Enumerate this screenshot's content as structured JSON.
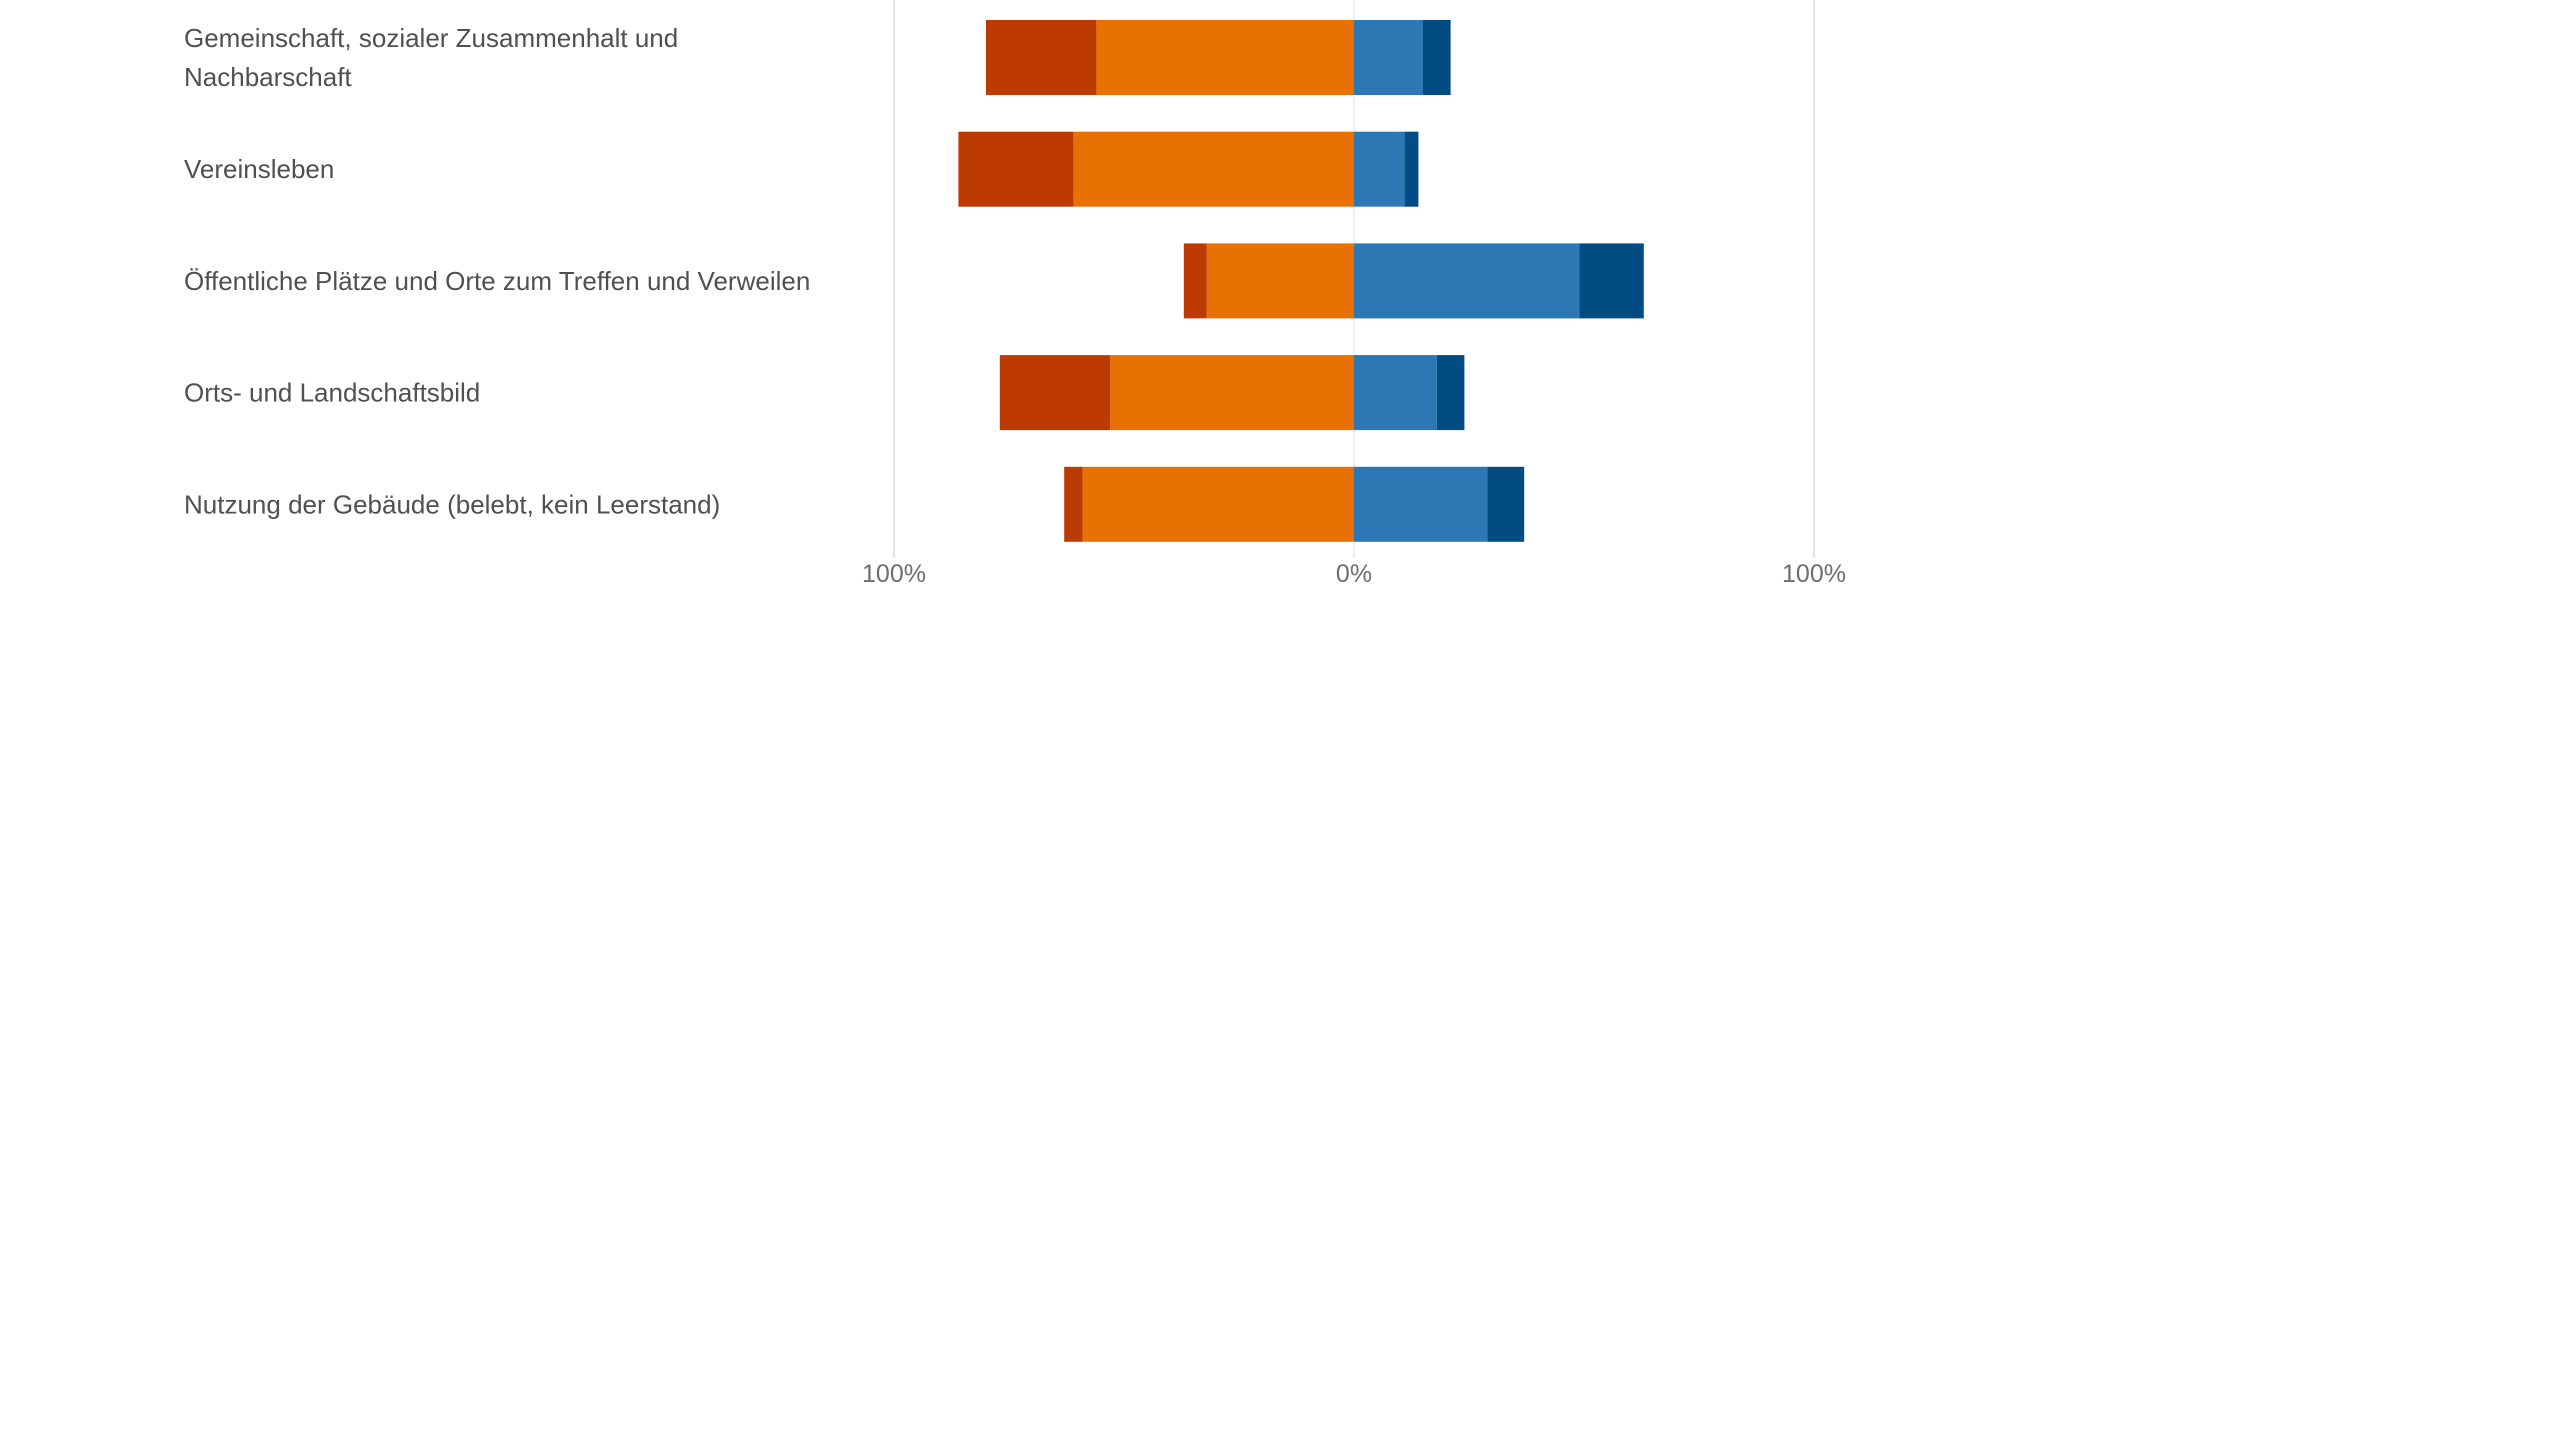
{
  "chart_data": {
    "type": "bar",
    "orientation": "horizontal",
    "stacking": "diverging",
    "categories": [
      [
        "Gemeinschaft, sozialer Zusammenhalt und",
        "Nachbarschaft"
      ],
      [
        "Vereinsleben"
      ],
      [
        "Öffentliche Plätze und Orte zum Treffen und Verweilen"
      ],
      [
        "Orts- und Landschaftsbild"
      ],
      [
        "Nutzung der Gebäude (belebt, kein Leerstand)"
      ]
    ],
    "series": [
      {
        "color": "#bd3b03",
        "side": "negative",
        "values": [
          24,
          25,
          5,
          24,
          4
        ]
      },
      {
        "color": "#e97103",
        "side": "negative",
        "values": [
          56,
          61,
          32,
          53,
          59
        ]
      },
      {
        "color": "#2c78b4",
        "side": "positive",
        "values": [
          15,
          11,
          49,
          18,
          29
        ]
      },
      {
        "color": "#024b83",
        "side": "positive",
        "values": [
          6,
          3,
          14,
          6,
          8
        ]
      }
    ],
    "xlim": [
      -100,
      100
    ],
    "x_ticks": [
      {
        "value": -100,
        "label": "100%"
      },
      {
        "value": 0,
        "label": "0%"
      },
      {
        "value": 100,
        "label": "100%"
      }
    ],
    "grid": true,
    "legend": false,
    "title": "",
    "xlabel": "",
    "ylabel": ""
  }
}
